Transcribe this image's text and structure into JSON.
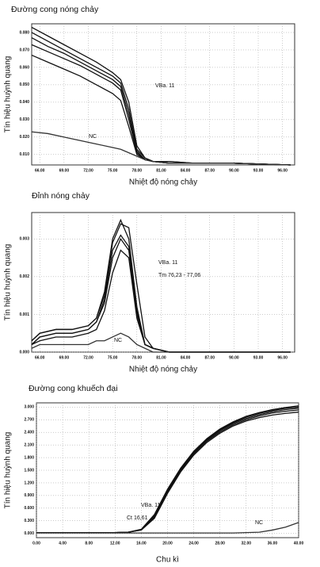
{
  "chart_data": [
    {
      "type": "line",
      "title": "Đường cong nóng chảy",
      "xlabel": "Nhiệt độ nóng chảy",
      "ylabel": "Tín hiệu huỳnh quang",
      "annotations": [
        "VBa. 11",
        "NC"
      ],
      "x": [
        65,
        67,
        69,
        71,
        73,
        75,
        76,
        77,
        78,
        79,
        80,
        82,
        85,
        90,
        97
      ],
      "series": [
        {
          "color": "#111111",
          "values": [
            0.083,
            0.078,
            0.073,
            0.068,
            0.063,
            0.057,
            0.053,
            0.04,
            0.015,
            0.008,
            0.006,
            0.006,
            0.005,
            0.005,
            0.004
          ]
        },
        {
          "color": "#111111",
          "values": [
            0.08,
            0.075,
            0.07,
            0.065,
            0.06,
            0.055,
            0.051,
            0.036,
            0.013,
            0.008,
            0.006,
            0.006,
            0.005,
            0.005,
            0.004
          ]
        },
        {
          "color": "#111111",
          "values": [
            0.077,
            0.072,
            0.068,
            0.063,
            0.058,
            0.053,
            0.049,
            0.033,
            0.012,
            0.007,
            0.006,
            0.005,
            0.005,
            0.005,
            0.004
          ]
        },
        {
          "color": "#111111",
          "values": [
            0.073,
            0.069,
            0.065,
            0.061,
            0.056,
            0.051,
            0.047,
            0.03,
            0.011,
            0.007,
            0.006,
            0.005,
            0.005,
            0.005,
            0.004
          ]
        },
        {
          "color": "#111111",
          "values": [
            0.067,
            0.063,
            0.059,
            0.055,
            0.05,
            0.045,
            0.041,
            0.026,
            0.01,
            0.007,
            0.006,
            0.005,
            0.005,
            0.005,
            0.004
          ]
        },
        {
          "color": "#333333",
          "values": [
            0.023,
            0.022,
            0.02,
            0.018,
            0.016,
            0.014,
            0.013,
            0.011,
            0.009,
            0.007,
            0.006,
            0.005,
            0.005,
            0.005,
            0.004
          ]
        }
      ],
      "xlim": [
        65,
        97.5
      ],
      "xticks": [
        {
          "value": 66,
          "label": "66.00"
        },
        {
          "value": 69,
          "label": "69.00"
        },
        {
          "value": 72,
          "label": "72.00"
        },
        {
          "value": 75,
          "label": "75.00"
        },
        {
          "value": 78,
          "label": "78.00"
        },
        {
          "value": 81,
          "label": "81.00"
        },
        {
          "value": 84,
          "label": "84.00"
        },
        {
          "value": 87,
          "label": "87.00"
        },
        {
          "value": 90,
          "label": "90.00"
        },
        {
          "value": 93,
          "label": "93.00"
        },
        {
          "value": 96,
          "label": "96.00"
        }
      ],
      "ylim": [
        0.004,
        0.085
      ],
      "yticks": [
        {
          "value": 0.01,
          "label": "0.010"
        },
        {
          "value": 0.02,
          "label": "0.020"
        },
        {
          "value": 0.03,
          "label": "0.030"
        },
        {
          "value": 0.04,
          "label": "0.040"
        },
        {
          "value": 0.05,
          "label": "0.050"
        },
        {
          "value": 0.06,
          "label": "0.060"
        },
        {
          "value": 0.07,
          "label": "0.070"
        },
        {
          "value": 0.08,
          "label": "0.080"
        }
      ],
      "grid": true
    },
    {
      "type": "line",
      "title": "Đỉnh nóng chảy",
      "xlabel": "Nhiệt độ nóng chảy",
      "ylabel": "Tín hiệu huỳnh quang",
      "annotations": [
        "VBa. 11",
        "Tm 76,23 - 77,06",
        "NC"
      ],
      "x": [
        65,
        66,
        68,
        70,
        72,
        73,
        74,
        75,
        76,
        77,
        78,
        79,
        80,
        82,
        85,
        97
      ],
      "series": [
        {
          "color": "#111111",
          "values": [
            0.0003,
            0.0005,
            0.0006,
            0.0006,
            0.0007,
            0.0009,
            0.0016,
            0.003,
            0.0035,
            0.003,
            0.0012,
            0.0002,
            0.0001,
            0,
            0,
            0
          ]
        },
        {
          "color": "#111111",
          "values": [
            0.0003,
            0.0005,
            0.0006,
            0.0006,
            0.0007,
            0.0009,
            0.0015,
            0.0029,
            0.0034,
            0.0033,
            0.0018,
            0.0004,
            0.0001,
            0,
            0,
            0
          ]
        },
        {
          "color": "#111111",
          "values": [
            0.0002,
            0.0004,
            0.0005,
            0.0005,
            0.0006,
            0.0008,
            0.0014,
            0.0027,
            0.0031,
            0.0028,
            0.0011,
            0.0002,
            0.0001,
            0,
            0,
            0
          ]
        },
        {
          "color": "#111111",
          "values": [
            0.0002,
            0.0004,
            0.0005,
            0.0005,
            0.0006,
            0.0008,
            0.0013,
            0.0025,
            0.003,
            0.0027,
            0.001,
            0.0002,
            0.0001,
            0,
            0,
            0
          ]
        },
        {
          "color": "#111111",
          "values": [
            0.0002,
            0.0003,
            0.0004,
            0.0004,
            0.0005,
            0.0006,
            0.0011,
            0.0021,
            0.0027,
            0.0025,
            0.0009,
            0.0002,
            0.0001,
            0,
            0,
            0
          ]
        },
        {
          "color": "#333333",
          "values": [
            0.0001,
            0.0002,
            0.0002,
            0.0002,
            0.0002,
            0.0003,
            0.0003,
            0.0004,
            0.0005,
            0.0004,
            0.0002,
            0.0001,
            0,
            0,
            0,
            0
          ]
        }
      ],
      "xlim": [
        65,
        97.5
      ],
      "xticks": [
        {
          "value": 66,
          "label": "66.00"
        },
        {
          "value": 69,
          "label": "69.00"
        },
        {
          "value": 72,
          "label": "72.00"
        },
        {
          "value": 75,
          "label": "75.00"
        },
        {
          "value": 78,
          "label": "78.00"
        },
        {
          "value": 81,
          "label": "81.00"
        },
        {
          "value": 84,
          "label": "84.00"
        },
        {
          "value": 87,
          "label": "87.00"
        },
        {
          "value": 90,
          "label": "90.00"
        },
        {
          "value": 93,
          "label": "93.00"
        },
        {
          "value": 96,
          "label": "96.00"
        }
      ],
      "ylim": [
        0,
        0.0037
      ],
      "yticks": [
        {
          "value": 0,
          "label": "0.000"
        },
        0.001,
        0.002,
        0.003
      ],
      "grid": true
    },
    {
      "type": "line",
      "title": "Đường cong khuếch đại",
      "xlabel": "Chu kì",
      "ylabel": "Tín hiệu huỳnh quang",
      "annotations": [
        "VBa. 11",
        "Ct 16,61",
        "NC"
      ],
      "x": [
        0,
        2,
        4,
        6,
        8,
        10,
        12,
        14,
        16,
        18,
        20,
        22,
        24,
        26,
        28,
        30,
        32,
        34,
        36,
        38,
        40
      ],
      "series": [
        {
          "color": "#111111",
          "values": [
            0.02,
            0.02,
            0.02,
            0.02,
            0.02,
            0.02,
            0.02,
            0.03,
            0.1,
            0.45,
            1.05,
            1.55,
            1.95,
            2.25,
            2.48,
            2.65,
            2.78,
            2.87,
            2.94,
            2.99,
            3.03
          ]
        },
        {
          "color": "#111111",
          "values": [
            0.02,
            0.02,
            0.02,
            0.02,
            0.02,
            0.02,
            0.02,
            0.03,
            0.09,
            0.42,
            1.02,
            1.53,
            1.93,
            2.23,
            2.46,
            2.63,
            2.76,
            2.85,
            2.92,
            2.97,
            3.0
          ]
        },
        {
          "color": "#111111",
          "values": [
            0.02,
            0.02,
            0.02,
            0.02,
            0.02,
            0.02,
            0.02,
            0.03,
            0.09,
            0.4,
            1.0,
            1.51,
            1.91,
            2.21,
            2.44,
            2.61,
            2.73,
            2.82,
            2.89,
            2.94,
            2.97
          ]
        },
        {
          "color": "#111111",
          "values": [
            0.02,
            0.02,
            0.02,
            0.02,
            0.02,
            0.02,
            0.02,
            0.03,
            0.08,
            0.38,
            0.98,
            1.49,
            1.89,
            2.19,
            2.41,
            2.58,
            2.7,
            2.79,
            2.86,
            2.9,
            2.93
          ]
        },
        {
          "color": "#111111",
          "values": [
            0.02,
            0.02,
            0.02,
            0.02,
            0.02,
            0.02,
            0.02,
            0.03,
            0.08,
            0.36,
            0.95,
            1.46,
            1.86,
            2.16,
            2.38,
            2.55,
            2.67,
            2.75,
            2.81,
            2.85,
            2.88
          ]
        },
        {
          "color": "#333333",
          "values": [
            0.01,
            0.01,
            0.01,
            0.01,
            0.01,
            0.01,
            0.01,
            0.01,
            0.01,
            0.01,
            0.01,
            0.01,
            0.01,
            0.01,
            0.01,
            0.01,
            0.02,
            0.03,
            0.08,
            0.15,
            0.26
          ]
        }
      ],
      "xlim": [
        0,
        40
      ],
      "xticks": [
        {
          "value": 0,
          "label": "0.00"
        },
        {
          "value": 4,
          "label": "4.00"
        },
        {
          "value": 8,
          "label": "8.00"
        },
        {
          "value": 12,
          "label": "12.00"
        },
        {
          "value": 16,
          "label": "16.00"
        },
        {
          "value": 20,
          "label": "20.00"
        },
        {
          "value": 24,
          "label": "24.00"
        },
        {
          "value": 28,
          "label": "28.00"
        },
        {
          "value": 32,
          "label": "32.00"
        },
        {
          "value": 36,
          "label": "36.00"
        },
        {
          "value": 40,
          "label": "40.00"
        }
      ],
      "ylim": [
        -0.1,
        3.1
      ],
      "yticks": [
        {
          "value": 0,
          "label": "0.000"
        },
        {
          "value": 0.3,
          "label": "0.300"
        },
        {
          "value": 0.6,
          "label": "0.600"
        },
        {
          "value": 0.9,
          "label": "0.900"
        },
        {
          "value": 1.2,
          "label": "1.200"
        },
        {
          "value": 1.5,
          "label": "1.500"
        },
        {
          "value": 1.8,
          "label": "1.800"
        },
        {
          "value": 2.1,
          "label": "2.100"
        },
        {
          "value": 2.4,
          "label": "2.400"
        },
        {
          "value": 2.7,
          "label": "2.700"
        },
        {
          "value": 3.0,
          "label": "3.000"
        }
      ],
      "grid": true
    }
  ]
}
